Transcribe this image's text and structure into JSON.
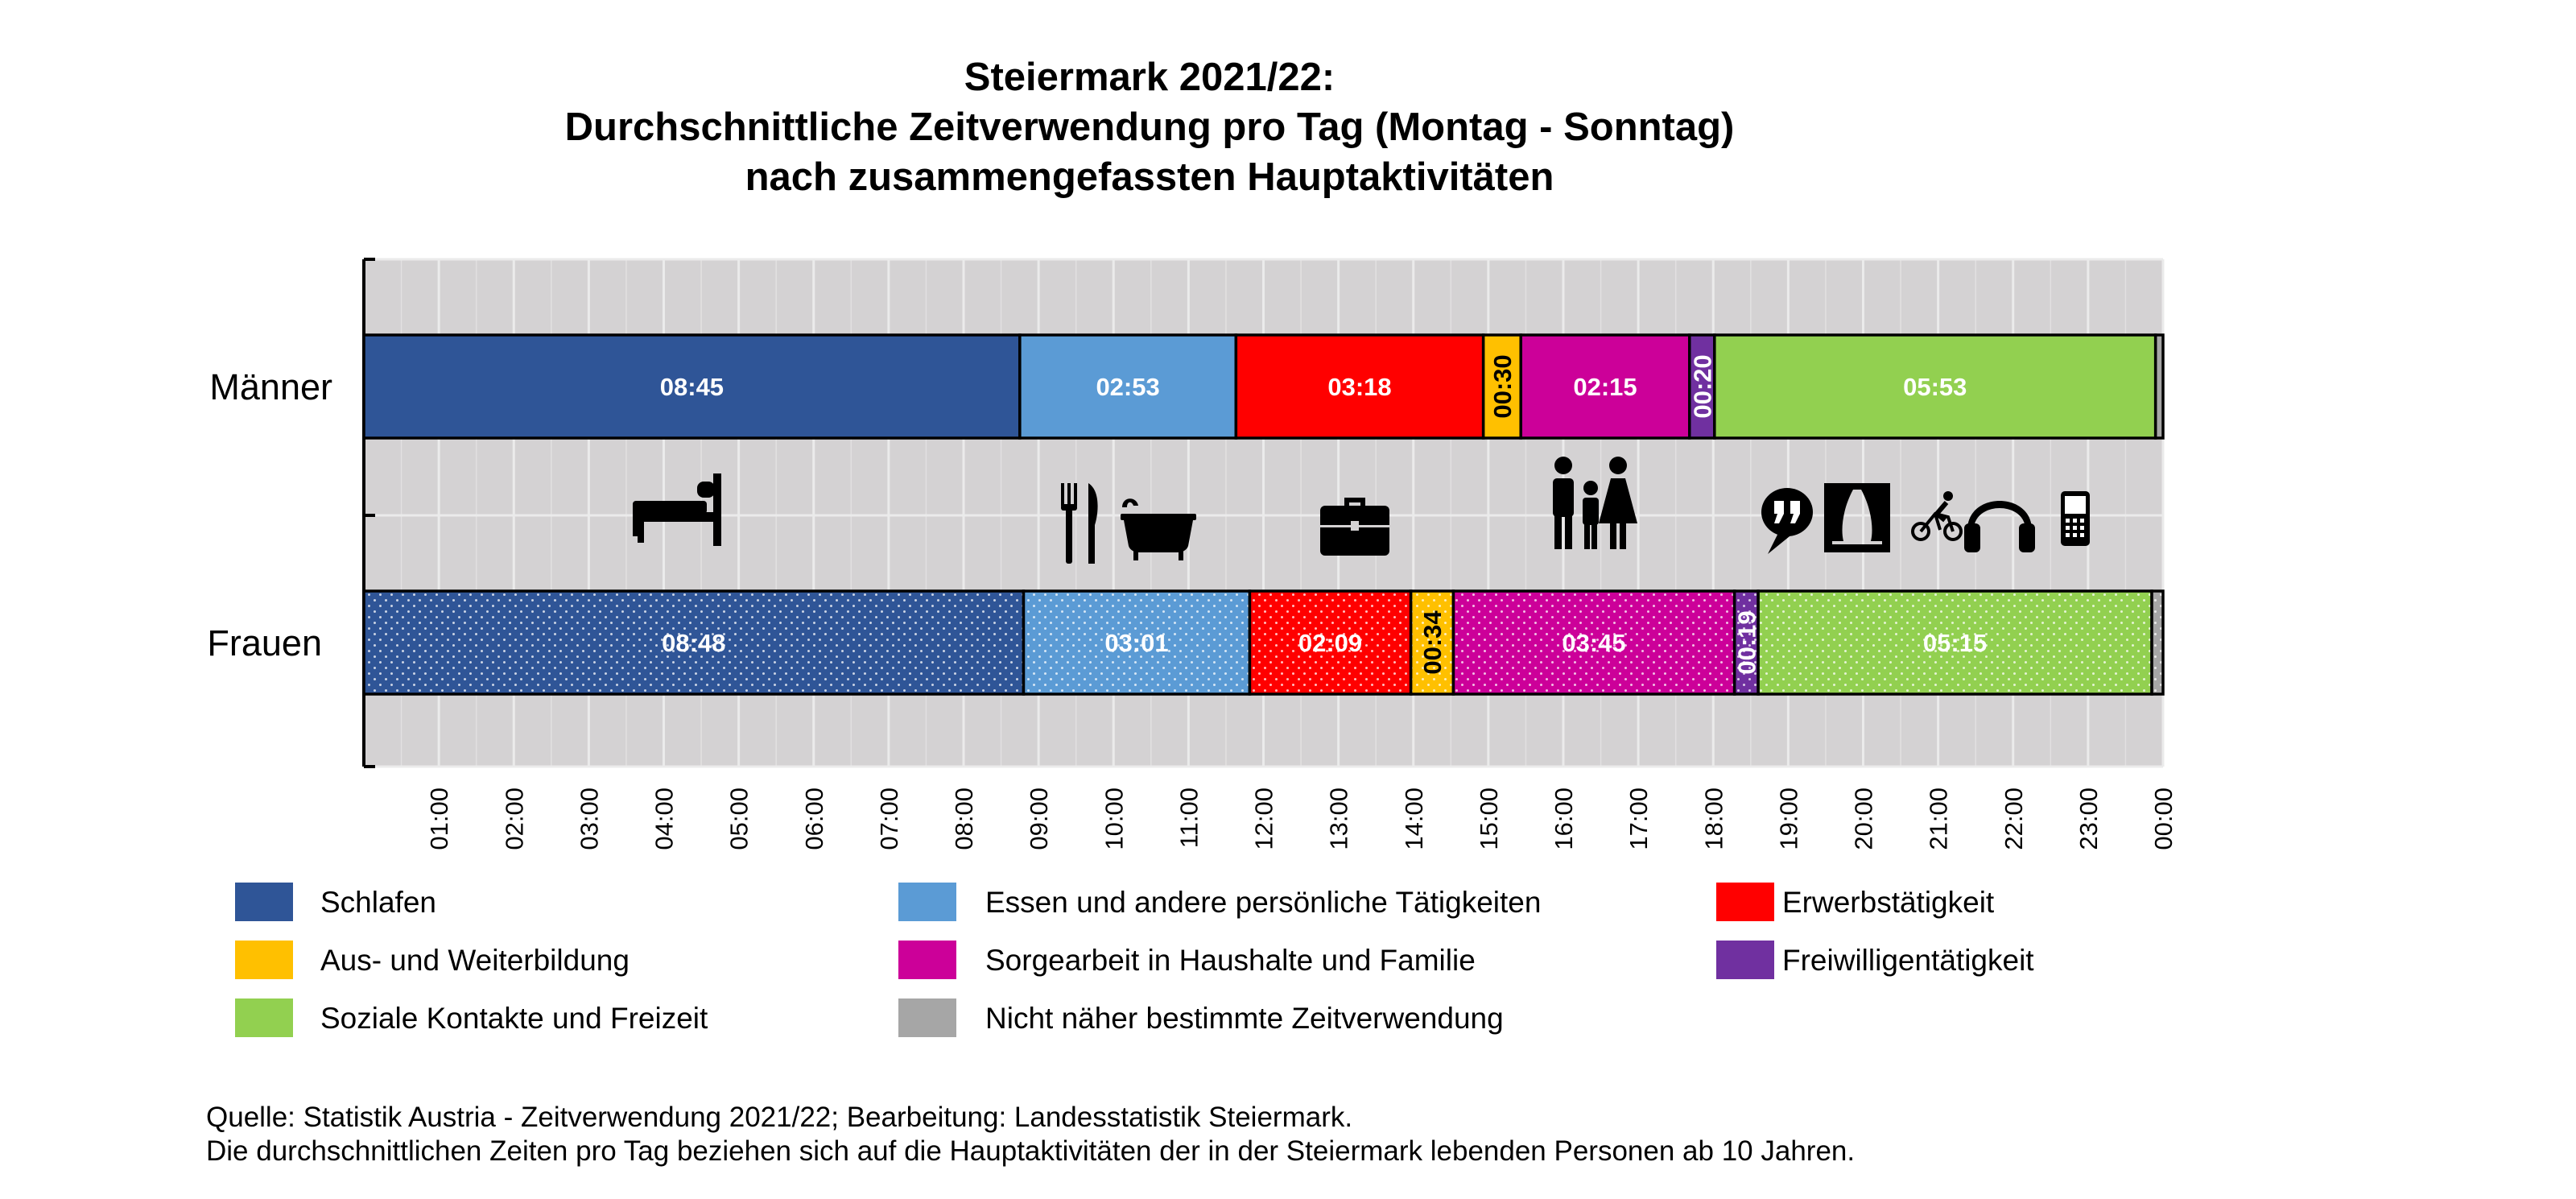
{
  "chart_data": {
    "type": "bar",
    "orientation": "horizontal",
    "stacked": true,
    "title": [
      "Steiermark 2021/22:",
      "Durchschnittliche Zeitverwendung pro Tag (Montag - Sonntag)",
      "nach zusammengefassten Hauptaktivitäten"
    ],
    "categories": [
      "Männer",
      "Frauen"
    ],
    "x_ticks": [
      "01:00",
      "02:00",
      "03:00",
      "04:00",
      "05:00",
      "06:00",
      "07:00",
      "08:00",
      "09:00",
      "10:00",
      "11:00",
      "12:00",
      "13:00",
      "14:00",
      "15:00",
      "16:00",
      "17:00",
      "18:00",
      "19:00",
      "20:00",
      "21:00",
      "22:00",
      "23:00",
      "00:00"
    ],
    "xlim_minutes": [
      0,
      1440
    ],
    "grid": true,
    "legend_position": "bottom",
    "series": [
      {
        "name": "Schlafen",
        "color": "#2F5597",
        "minutes": [
          525,
          528
        ],
        "labels": [
          "08:45",
          "08:48"
        ]
      },
      {
        "name": "Essen und andere persönliche Tätigkeiten",
        "color": "#5B9BD5",
        "minutes": [
          173,
          181
        ],
        "labels": [
          "02:53",
          "03:01"
        ]
      },
      {
        "name": "Erwerbstätigkeit",
        "color": "#FF0000",
        "minutes": [
          198,
          129
        ],
        "labels": [
          "03:18",
          "02:09"
        ]
      },
      {
        "name": "Aus- und Weiterbildung",
        "color": "#FFC000",
        "minutes": [
          30,
          34
        ],
        "labels": [
          "00:30",
          "00:34"
        ]
      },
      {
        "name": "Sorgearbeit in Haushalte und Familie",
        "color": "#CC0099",
        "minutes": [
          135,
          225
        ],
        "labels": [
          "02:15",
          "03:45"
        ]
      },
      {
        "name": "Freiwilligentätigkeit",
        "color": "#7030A0",
        "minutes": [
          20,
          19
        ],
        "labels": [
          "00:20",
          "00:19"
        ]
      },
      {
        "name": "Soziale Kontakte und Freizeit",
        "color": "#92D050",
        "minutes": [
          353,
          315
        ],
        "labels": [
          "05:53",
          "05:15"
        ]
      },
      {
        "name": "Nicht näher bestimmte Zeitverwendung",
        "color": "#A6A6A6",
        "minutes": [
          6,
          9
        ],
        "labels": [
          "",
          ""
        ]
      }
    ],
    "vertical_labels": [
      "00:30",
      "00:20",
      "00:34",
      "00:19"
    ],
    "pattern_on_category": "Frauen",
    "legend_order": [
      "Schlafen",
      "Essen und andere persönliche Tätigkeiten",
      "Erwerbstätigkeit",
      "Aus- und Weiterbildung",
      "Sorgearbeit in Haushalte und Familie",
      "Freiwilligentätigkeit",
      "Soziale Kontakte und Freizeit",
      "Nicht näher bestimmte Zeitverwendung"
    ],
    "icons": [
      "bed-icon",
      "cutlery-icon",
      "bathtub-icon",
      "briefcase-icon",
      "family-icon",
      "speech-bubble-icon",
      "theater-icon",
      "cyclist-icon",
      "headphones-icon",
      "mobile-phone-icon"
    ],
    "panel_background": "#D4D2D3"
  },
  "source": {
    "line1": "Quelle: Statistik Austria - Zeitverwendung 2021/22; Bearbeitung: Landesstatistik Steiermark.",
    "line2": "Die durchschnittlichen Zeiten pro Tag beziehen sich auf die Hauptaktivitäten der in der Steiermark lebenden Personen ab 10 Jahren."
  }
}
